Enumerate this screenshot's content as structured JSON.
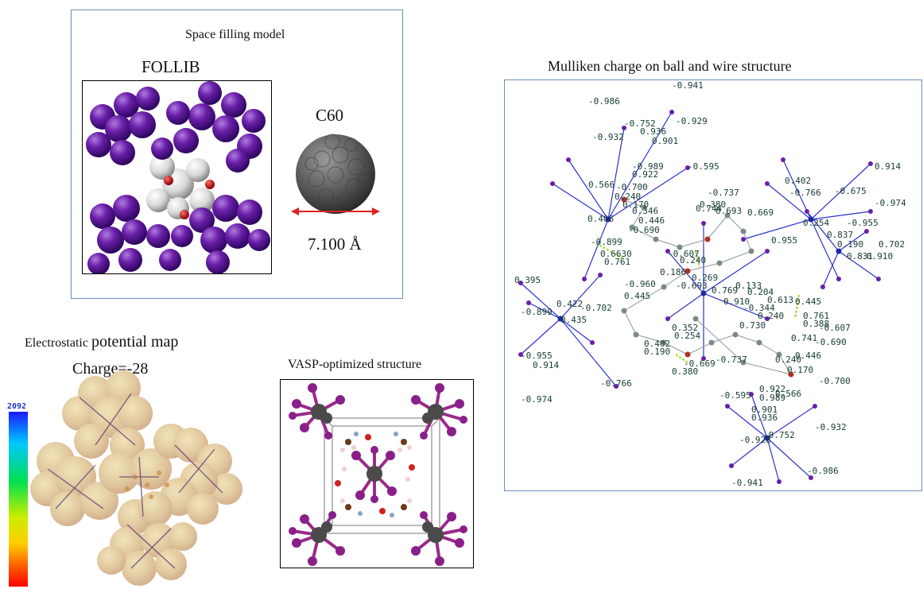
{
  "space_filling": {
    "title": "Space filling model",
    "follib_label": "FOLLIB",
    "c60_label": "C60",
    "diameter_label": "7.100 Å",
    "colors": {
      "iodine": "#6a1fa8",
      "carbon60": "#5a5a5a",
      "arrow": "#e02020",
      "frame": "#6b8fb8"
    }
  },
  "electrostatic": {
    "title_small": "Electrostatic",
    "title_large": "potential map",
    "charge_label": "Charge=-28",
    "scale_max": "2092"
  },
  "vasp": {
    "title": "VASP-optimized structure"
  },
  "mulliken": {
    "title": "Mulliken charge on ball and wire structure",
    "labels": [
      "-0.941",
      "-0.986",
      "-0.752",
      "-0.929",
      "-0.932",
      "0.936",
      "0.901",
      "-0.989",
      "0.922",
      "-0.595",
      "0.566",
      "-0.700",
      "0.240",
      "0.170",
      "0.346",
      "0.406",
      "-0.690",
      "0.446",
      "0.744",
      "-0.737",
      "0.380",
      "0.693",
      "0.669",
      "0.402",
      "-0.766",
      "-0.675",
      "0.914",
      "-0.974",
      "-0.955",
      "0.955",
      "0.254",
      "0.837",
      "0.190",
      "0.831",
      "0.910",
      "0.702",
      "-0.899",
      "0.6630",
      "0.761",
      "-0.607",
      "0.240",
      "0.186",
      "-0.693",
      "0.269",
      "0.769",
      "0.133",
      "0.395",
      "-0.960",
      "0.445",
      "0.422",
      "-0.702",
      "0.910",
      "0.204",
      "0.613",
      "0.445",
      "-0.607",
      "-0.899",
      "0.435",
      "-0.344",
      "0.240",
      "0.761",
      "0.388",
      "0.730",
      "-0.955",
      "0.914",
      "0.254",
      "0.446",
      "0.402",
      "-0.669",
      "0.741",
      "-0.690",
      "0.352",
      "0.190",
      "-0.737",
      "0.170",
      "0.380",
      "0.240",
      "-0.700",
      "-0.766",
      "0.566",
      "-0.595",
      "0.922",
      "0.989",
      "-0.974",
      "0.901",
      "0.936",
      "-0.932",
      "-0.928",
      "-0.752",
      "-0.986",
      "-0.941"
    ]
  }
}
